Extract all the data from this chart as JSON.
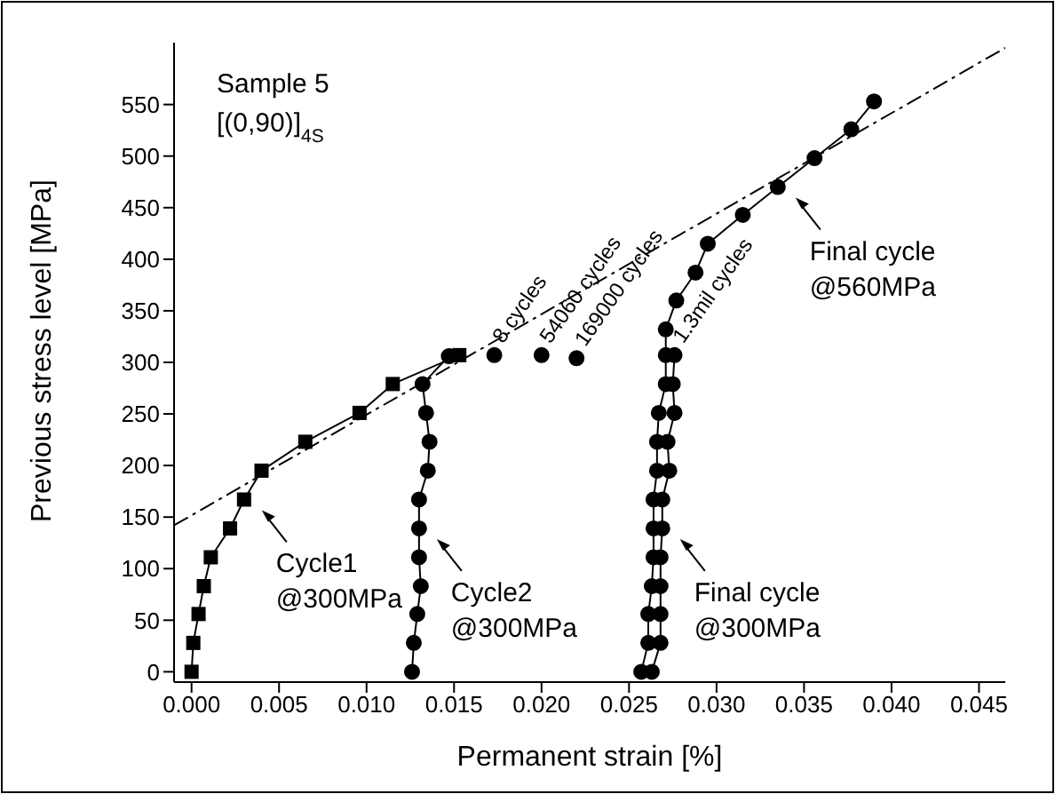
{
  "chart_data": {
    "type": "line",
    "xlabel": "Permanent strain [%]",
    "ylabel": "Previous stress level [MPa]",
    "xlim": [
      -0.001,
      0.0465
    ],
    "ylim": [
      -10,
      610
    ],
    "xticks": [
      {
        "value": 0,
        "label": "0.000"
      },
      {
        "value": 0.005,
        "label": "0.005"
      },
      {
        "value": 0.01,
        "label": "0.010"
      },
      {
        "value": 0.015,
        "label": "0.015"
      },
      {
        "value": 0.02,
        "label": "0.020"
      },
      {
        "value": 0.025,
        "label": "0.025"
      },
      {
        "value": 0.03,
        "label": "0.030"
      },
      {
        "value": 0.035,
        "label": "0.035"
      },
      {
        "value": 0.04,
        "label": "0.040"
      },
      {
        "value": 0.045,
        "label": "0.045"
      }
    ],
    "yticks": [
      0,
      50,
      100,
      150,
      200,
      250,
      300,
      350,
      400,
      450,
      500,
      550
    ],
    "grid": false,
    "series": [
      {
        "color": "#000000",
        "marker": "square",
        "x": [
          0,
          0.0001,
          0.0004,
          0.0007,
          0.0011,
          0.0022,
          0.003,
          0.004,
          0.0065,
          0.0096,
          0.0115,
          0.0153
        ],
        "values": [
          0,
          28,
          56,
          83,
          111,
          139,
          167,
          195,
          223,
          251,
          279,
          307
        ]
      },
      {
        "color": "#000000",
        "marker": "circle",
        "x": [
          0.0126,
          0.0127,
          0.0129,
          0.0131,
          0.013,
          0.013,
          0.013,
          0.0135,
          0.0136,
          0.0134,
          0.0132,
          0.0147
        ],
        "values": [
          0,
          28,
          56,
          83,
          111,
          139,
          167,
          195,
          223,
          251,
          279,
          306
        ]
      },
      {
        "type": "scatter",
        "color": "#000000",
        "marker": "circle",
        "x": [
          0.0173,
          0.02,
          0.022
        ],
        "values": [
          307,
          307,
          304
        ]
      },
      {
        "color": "#000000",
        "marker": "circle",
        "x": [
          0.0257,
          0.0261,
          0.0261,
          0.0263,
          0.0264,
          0.0264,
          0.0264,
          0.0266,
          0.0266,
          0.0267,
          0.0271,
          0.0271,
          0.0271,
          0.0277,
          0.0288,
          0.0295,
          0.0315,
          0.0335,
          0.0356,
          0.0377,
          0.039
        ],
        "values": [
          0,
          28,
          56,
          83,
          111,
          139,
          167,
          195,
          223,
          251,
          279,
          307,
          332,
          360,
          387,
          415,
          443,
          470,
          498,
          526,
          553
        ]
      },
      {
        "color": "#000000",
        "marker": "circle",
        "x": [
          0.0263,
          0.0268,
          0.0268,
          0.0268,
          0.0268,
          0.0269,
          0.0269,
          0.0273,
          0.0272,
          0.0276,
          0.0275,
          0.0276
        ],
        "values": [
          0,
          28,
          56,
          83,
          111,
          139,
          167,
          195,
          223,
          251,
          279,
          307
        ]
      },
      {
        "color": "#000000",
        "marker": "none",
        "line_style": "dashed",
        "x": [
          -0.001,
          0.0465
        ],
        "values": [
          142,
          605
        ]
      }
    ],
    "annotations": [
      "Sample 5",
      "[(0,90)]$_{4S}$",
      {
        "text": "8 cycles",
        "x": 0.0173,
        "y": 307
      },
      {
        "text": "54060 cycles",
        "x": 0.02,
        "y": 307
      },
      {
        "text": "169000 cycles",
        "x": 0.022,
        "y": 304
      },
      {
        "text": "1.3mil cycles",
        "x": 0.0276,
        "y": 307
      },
      {
        "text": "Cycle1\n@300MPa",
        "x": 0.003,
        "y": 167
      },
      {
        "text": "Cycle2\n@300MPa",
        "x": 0.013,
        "y": 139
      },
      {
        "text": "Final cycle\n@300MPa",
        "x": 0.0269,
        "y": 139
      },
      {
        "text": "Final cycle\n@560MPa",
        "x": 0.0335,
        "y": 470
      }
    ]
  }
}
